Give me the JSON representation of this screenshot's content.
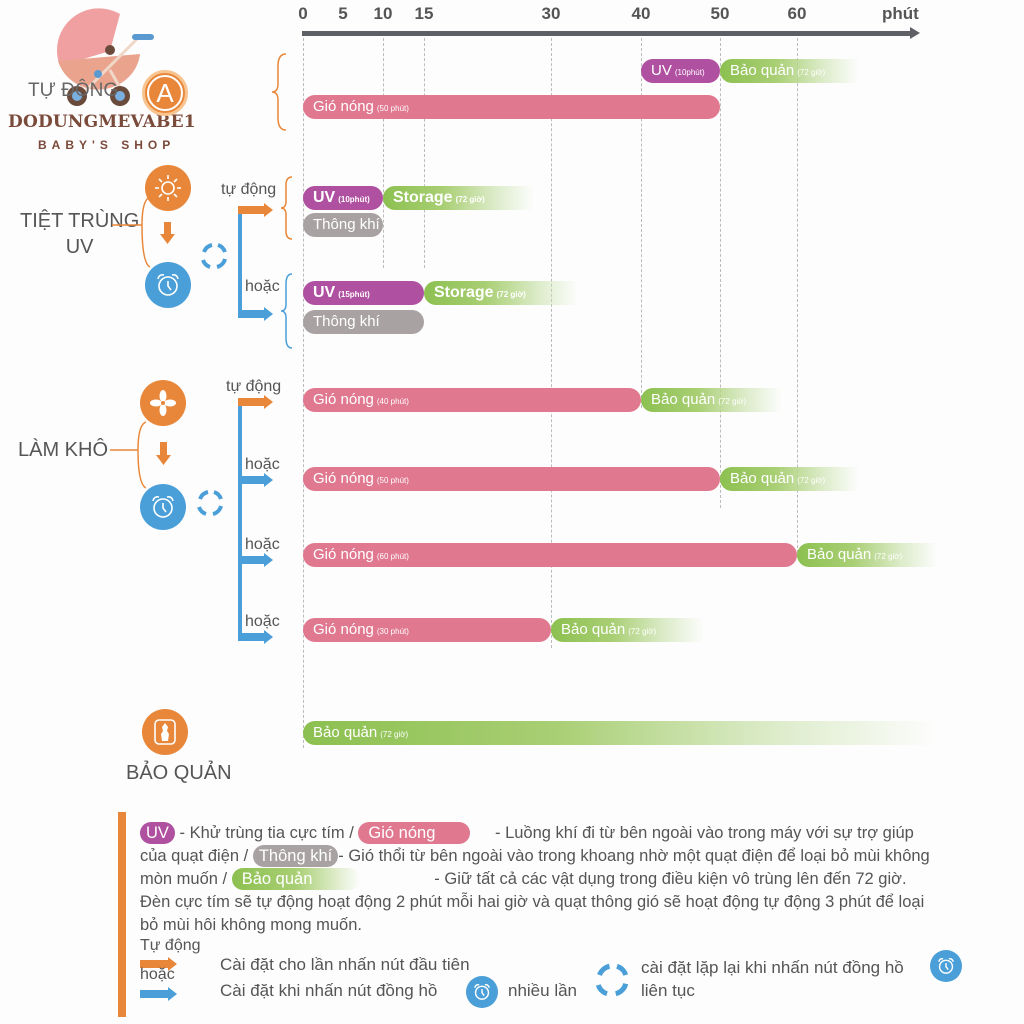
{
  "axis": {
    "ticks": [
      "0",
      "5",
      "10",
      "15",
      "30",
      "40",
      "50",
      "60"
    ],
    "unit": "phút"
  },
  "logo": {
    "name": "DODUNGMEVABE1",
    "tagline": "BABY'S SHOP"
  },
  "sections": {
    "auto": {
      "label": "TỰ ĐỘNG",
      "icon_letter": "A"
    },
    "uv": {
      "label_line1": "TIỆT TRÙNG",
      "label_line2": "UV",
      "branch_auto": "tự động",
      "branch_or": "hoặc"
    },
    "dry": {
      "label": "LÀM KHÔ",
      "branch_auto": "tự động",
      "branch_or1": "hoặc",
      "branch_or2": "hoặc",
      "branch_or3": "hoặc"
    },
    "storage": {
      "label": "BẢO QUẢN"
    }
  },
  "chart_data": {
    "type": "timeline",
    "x_unit": "phút",
    "rows": [
      {
        "group": "TỰ ĐỘNG",
        "bars": [
          {
            "label": "UV",
            "note": "(10phút)",
            "start": 40,
            "end": 50,
            "kind": "uv"
          },
          {
            "label": "Bảo quản",
            "note": "(72 giờ)",
            "start": 50,
            "end": 68,
            "kind": "storage"
          }
        ]
      },
      {
        "group": "TỰ ĐỘNG",
        "bars": [
          {
            "label": "Gió nóng",
            "note": "(50 phút)",
            "start": 0,
            "end": 50,
            "kind": "hot"
          }
        ]
      },
      {
        "group": "TIỆT TRÙNG UV / tự động",
        "bars": [
          {
            "label": "UV",
            "note": "(10phút)",
            "start": 0,
            "end": 10,
            "kind": "uv"
          },
          {
            "label": "Storage",
            "note": "(72 giờ)",
            "start": 10,
            "end": 28,
            "kind": "storage"
          }
        ]
      },
      {
        "group": "TIỆT TRÙNG UV / tự động",
        "bars": [
          {
            "label": "Thông khí",
            "note": "",
            "start": 0,
            "end": 10,
            "kind": "vent"
          }
        ]
      },
      {
        "group": "TIỆT TRÙNG UV / hoặc",
        "bars": [
          {
            "label": "UV",
            "note": "(15phút)",
            "start": 0,
            "end": 15,
            "kind": "uv"
          },
          {
            "label": "Storage",
            "note": "(72 giờ)",
            "start": 15,
            "end": 33,
            "kind": "storage"
          }
        ]
      },
      {
        "group": "TIỆT TRÙNG UV / hoặc",
        "bars": [
          {
            "label": "Thông khí",
            "note": "",
            "start": 0,
            "end": 15,
            "kind": "vent"
          }
        ]
      },
      {
        "group": "LÀM KHÔ / tự động",
        "bars": [
          {
            "label": "Gió nóng",
            "note": "(40 phút)",
            "start": 0,
            "end": 40,
            "kind": "hot"
          },
          {
            "label": "Bảo quản",
            "note": "(72 giờ)",
            "start": 40,
            "end": 58,
            "kind": "storage"
          }
        ]
      },
      {
        "group": "LÀM KHÔ / hoặc",
        "bars": [
          {
            "label": "Gió nóng",
            "note": "(50 phút)",
            "start": 0,
            "end": 50,
            "kind": "hot"
          },
          {
            "label": "Bảo quản",
            "note": "(72 giờ)",
            "start": 50,
            "end": 68,
            "kind": "storage"
          }
        ]
      },
      {
        "group": "LÀM KHÔ / hoặc",
        "bars": [
          {
            "label": "Gió nóng",
            "note": "(60 phút)",
            "start": 0,
            "end": 60,
            "kind": "hot"
          },
          {
            "label": "Bảo quản",
            "note": "(72 giờ)",
            "start": 60,
            "end": 78,
            "kind": "storage"
          }
        ]
      },
      {
        "group": "LÀM KHÔ / hoặc",
        "bars": [
          {
            "label": "Gió nóng",
            "note": "(30 phút)",
            "start": 0,
            "end": 30,
            "kind": "hot"
          },
          {
            "label": "Bảo quản",
            "note": "(72 giờ)",
            "start": 30,
            "end": 48,
            "kind": "storage"
          }
        ]
      },
      {
        "group": "BẢO QUẢN",
        "bars": [
          {
            "label": "Bảo quản",
            "note": "(72 giờ)",
            "start": 0,
            "end": 78,
            "kind": "storage"
          }
        ]
      }
    ]
  },
  "legend": {
    "uv_pill": "UV",
    "uv_desc": " - Khử trùng tia cực tím / ",
    "hot_pill": "Gió nóng",
    "hot_desc": " - Luồng khí đi từ bên ngoài vào trong máy với sự trợ giúp của quạt điện / ",
    "vent_pill": "Thông khí",
    "vent_desc": "- Gió thổi từ bên ngoài vào trong khoang nhờ một quạt điện để loại bỏ mùi không mòn muốn / ",
    "storage_pill": "Bảo quản",
    "storage_desc": " - Giữ tất cả các vật dụng trong điều kiện vô trùng lên đến 72 giờ. Đèn cực tím sẽ tự động hoạt động 2 phút mỗi hai giờ và quạt thông gió sẽ hoạt động tự động 3 phút để loại bỏ mùi hôi không mong muốn.",
    "auto_label": "Tự động",
    "or_label": "hoặc",
    "auto_desc": "Cài đặt cho lần nhấn nút đầu tiên",
    "or_desc": "Cài đặt khi nhấn nút đồng hồ",
    "many_times": "nhiều lần",
    "repeat_desc_line1": "cài đặt lặp lại khi nhấn nút đồng hồ",
    "repeat_desc_line2": "liên tục"
  },
  "colors": {
    "uv": "#b050a0",
    "hot": "#e07890",
    "vent": "#a8a2a2",
    "storage": "#8cc050",
    "orange": "#e8873a",
    "blue": "#4a9fd8"
  }
}
